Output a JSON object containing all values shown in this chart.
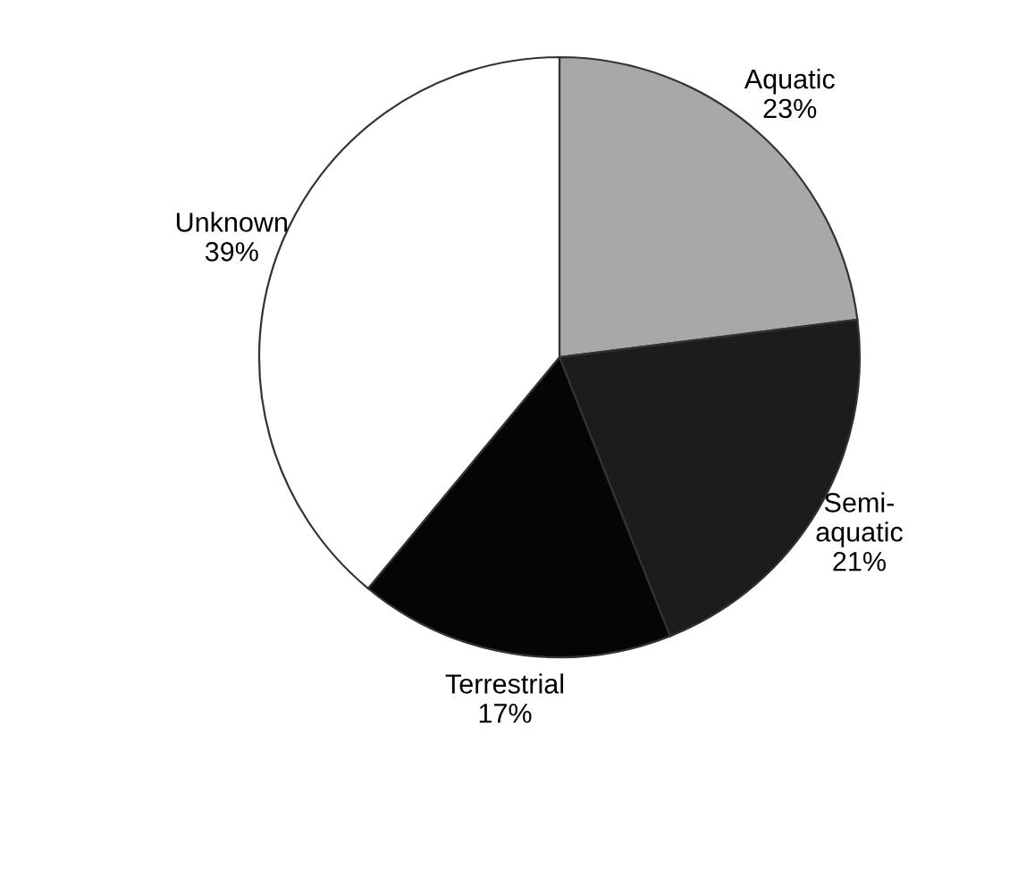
{
  "chart_data": {
    "type": "pie",
    "categories": [
      "Aquatic",
      "Semi-aquatic",
      "Terrestrial",
      "Unknown"
    ],
    "values": [
      23,
      21,
      17,
      39
    ],
    "value_labels": [
      "23%",
      "21%",
      "17%",
      "39%"
    ],
    "colors": [
      "#a8a8a8",
      "#1c1c1c",
      "#050505",
      "#ffffff"
    ]
  }
}
